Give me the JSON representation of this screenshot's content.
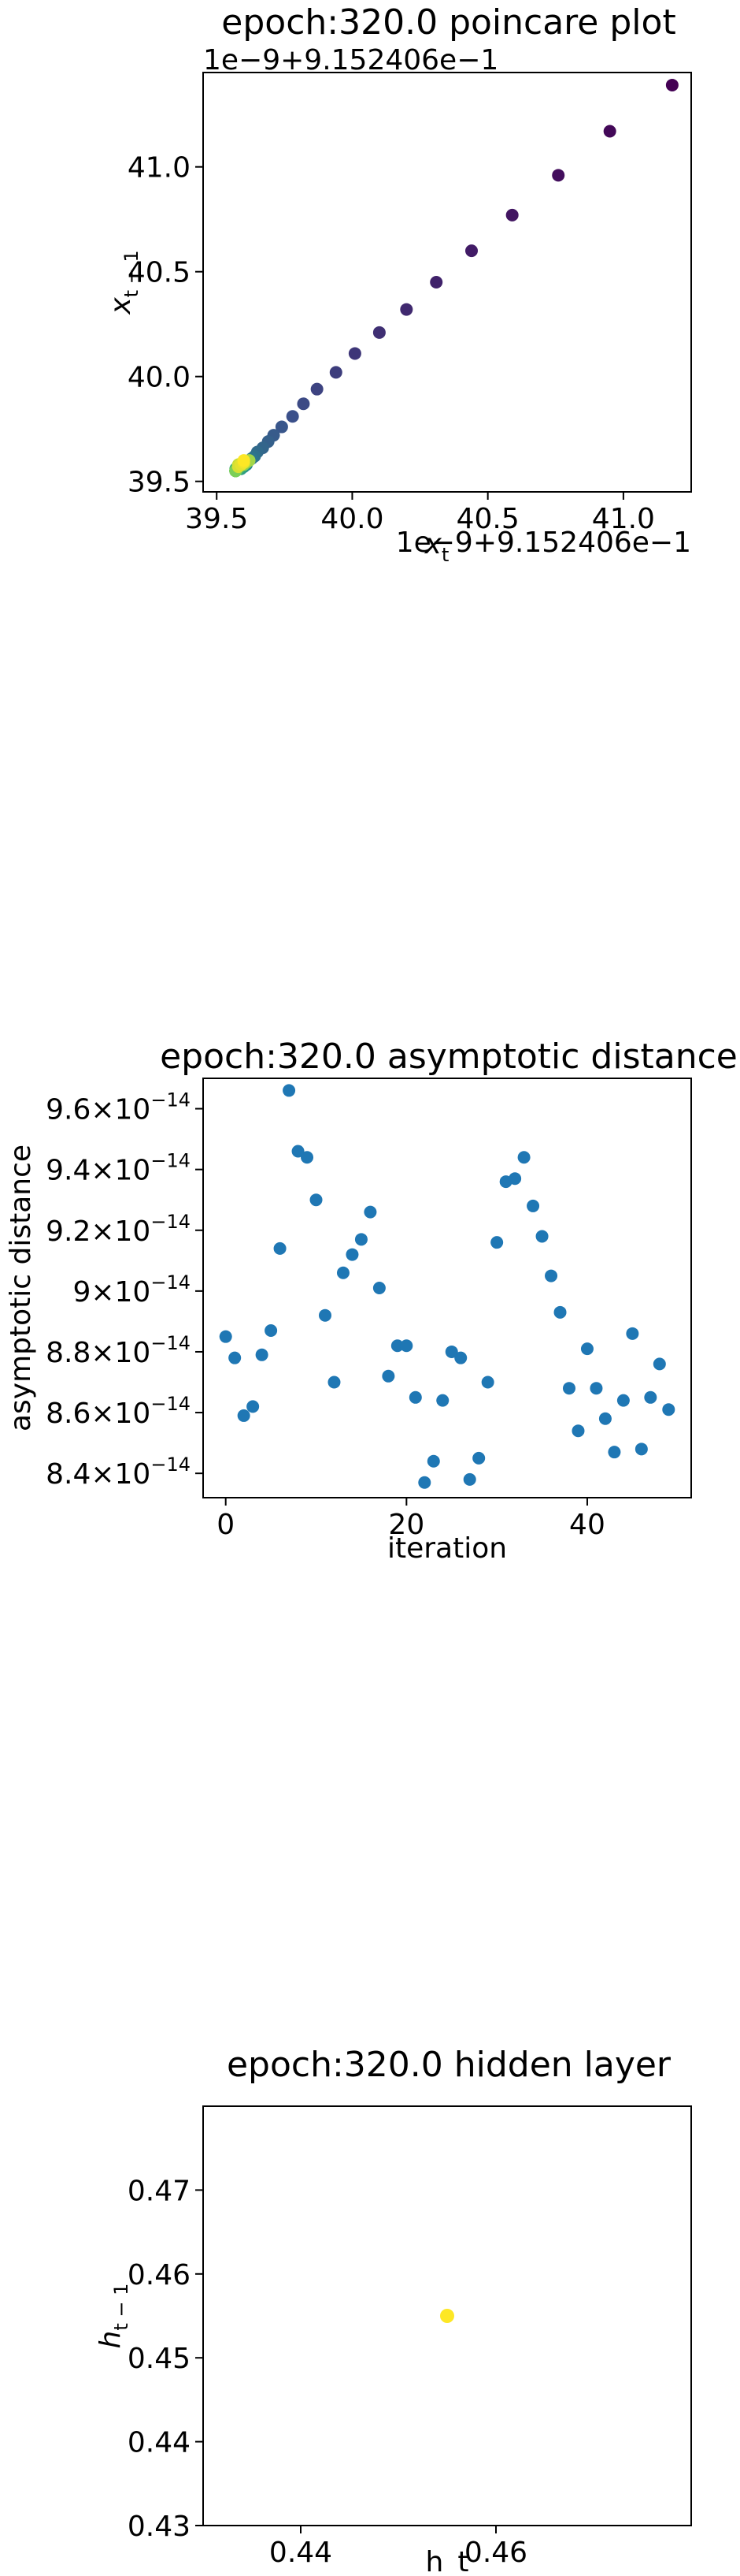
{
  "chart_data": [
    {
      "type": "scatter",
      "title": "epoch:320.0 poincare plot",
      "xlabel": "x_t",
      "ylabel": "x_{t-1}",
      "x_offset_text": "1e−9+9.152406e−1",
      "y_offset_text": "1e−9+9.152406e−1",
      "xlim": [
        39.45,
        41.25
      ],
      "ylim": [
        39.45,
        41.45
      ],
      "xticks": [
        39.5,
        40.0,
        40.5,
        41.0
      ],
      "xtick_labels": [
        "39.5",
        "40.0",
        "40.5",
        "41.0"
      ],
      "yticks": [
        39.5,
        40.0,
        40.5,
        41.0
      ],
      "ytick_labels": [
        "39.5",
        "40.0",
        "40.5",
        "41.0"
      ],
      "colormap": "viridis",
      "color_scale_note": "early iterations dark purple, late iterations yellow",
      "points": [
        [
          41.18,
          41.39
        ],
        [
          40.95,
          41.17
        ],
        [
          40.76,
          40.96
        ],
        [
          40.59,
          40.77
        ],
        [
          40.44,
          40.6
        ],
        [
          40.31,
          40.45
        ],
        [
          40.2,
          40.32
        ],
        [
          40.1,
          40.21
        ],
        [
          40.01,
          40.11
        ],
        [
          39.94,
          40.02
        ],
        [
          39.87,
          39.94
        ],
        [
          39.82,
          39.87
        ],
        [
          39.78,
          39.81
        ],
        [
          39.74,
          39.76
        ],
        [
          39.71,
          39.72
        ],
        [
          39.69,
          39.69
        ],
        [
          39.67,
          39.66
        ],
        [
          39.65,
          39.64
        ],
        [
          39.64,
          39.62
        ],
        [
          39.63,
          39.61
        ],
        [
          39.62,
          39.6
        ],
        [
          39.61,
          39.59
        ],
        [
          39.61,
          39.58
        ],
        [
          39.6,
          39.58
        ],
        [
          39.6,
          39.57
        ],
        [
          39.59,
          39.57
        ],
        [
          39.59,
          39.57
        ],
        [
          39.59,
          39.56
        ],
        [
          39.58,
          39.56
        ],
        [
          39.58,
          39.56
        ],
        [
          39.58,
          39.56
        ],
        [
          39.58,
          39.56
        ],
        [
          39.57,
          39.56
        ],
        [
          39.57,
          39.55
        ],
        [
          39.57,
          39.55
        ],
        [
          39.57,
          39.55
        ],
        [
          39.57,
          39.55
        ],
        [
          39.57,
          39.55
        ],
        [
          39.57,
          39.55
        ],
        [
          39.57,
          39.55
        ],
        [
          39.6,
          39.58
        ],
        [
          39.61,
          39.59
        ],
        [
          39.62,
          39.6
        ],
        [
          39.6,
          39.59
        ],
        [
          39.59,
          39.58
        ],
        [
          39.58,
          39.58
        ],
        [
          39.58,
          39.57
        ],
        [
          39.59,
          39.58
        ],
        [
          39.6,
          39.59
        ],
        [
          39.6,
          39.6
        ]
      ]
    },
    {
      "type": "scatter",
      "title": "epoch:320.0 asymptotic distance",
      "xlabel": "iteration",
      "ylabel": "asymptotic distance",
      "xlim": [
        -2.5,
        51.5
      ],
      "ylim": [
        8.32,
        9.7
      ],
      "y_unit_exponent": "-14",
      "xticks": [
        0,
        20,
        40
      ],
      "xtick_labels": [
        "0",
        "20",
        "40"
      ],
      "yticks": [
        8.4,
        8.6,
        8.8,
        9.0,
        9.2,
        9.4,
        9.6
      ],
      "ytick_mantissas": [
        "8.4",
        "8.6",
        "8.8",
        "9",
        "9.2",
        "9.4",
        "9.6"
      ],
      "color": "#1f77b4",
      "x": [
        0,
        1,
        2,
        3,
        4,
        5,
        6,
        7,
        8,
        9,
        10,
        11,
        12,
        13,
        14,
        15,
        16,
        17,
        18,
        19,
        20,
        21,
        22,
        23,
        24,
        25,
        26,
        27,
        28,
        29,
        30,
        31,
        32,
        33,
        34,
        35,
        36,
        37,
        38,
        39,
        40,
        41,
        42,
        43,
        44,
        45,
        46,
        47,
        48,
        49
      ],
      "y": [
        8.85,
        8.78,
        8.59,
        8.62,
        8.79,
        8.87,
        9.14,
        9.66,
        9.46,
        9.44,
        9.3,
        8.92,
        8.7,
        9.06,
        9.12,
        9.17,
        9.26,
        9.01,
        8.72,
        8.82,
        8.82,
        8.65,
        8.37,
        8.44,
        8.64,
        8.8,
        8.78,
        8.38,
        8.45,
        8.7,
        9.16,
        9.36,
        9.37,
        9.44,
        9.28,
        9.18,
        9.05,
        8.93,
        8.68,
        8.54,
        8.81,
        8.68,
        8.58,
        8.47,
        8.64,
        8.86,
        8.48,
        8.65,
        8.76,
        8.61
      ]
    },
    {
      "type": "scatter",
      "title": "epoch:320.0 hidden layer",
      "xlabel": "h_t",
      "ylabel": "h_{t-1}",
      "xlim": [
        0.43,
        0.48
      ],
      "ylim": [
        0.43,
        0.48
      ],
      "xticks": [
        0.44,
        0.46
      ],
      "xtick_labels": [
        "0.44",
        "0.46"
      ],
      "yticks": [
        0.43,
        0.44,
        0.45,
        0.46,
        0.47
      ],
      "ytick_labels": [
        "0.43",
        "0.44",
        "0.45",
        "0.46",
        "0.47"
      ],
      "color": "#fde725",
      "points": [
        [
          0.455,
          0.455
        ]
      ]
    }
  ]
}
